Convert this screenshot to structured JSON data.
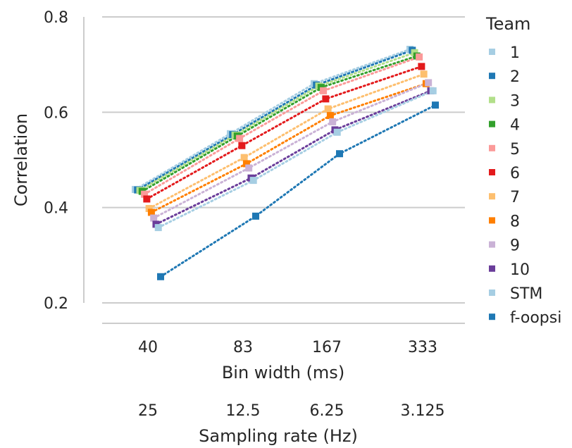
{
  "chart_data": {
    "type": "line",
    "ylabel": "Correlation",
    "xlabel": "Bin width (ms)",
    "x2label": "Sampling rate (Hz)",
    "categories": [
      "40",
      "83",
      "167",
      "333"
    ],
    "categories2": [
      "25",
      "12.5",
      "6.25",
      "3.125"
    ],
    "ylim": [
      0.2,
      0.8
    ],
    "yticks": [
      "0.2",
      "0.4",
      "0.6",
      "0.8"
    ],
    "grid": "horizontal",
    "line_style": "dotted",
    "legend_title": "Team",
    "legend_position": "right",
    "series": [
      {
        "name": "1",
        "color": "#a6cee3",
        "values": [
          0.438,
          0.555,
          0.66,
          0.732
        ]
      },
      {
        "name": "2",
        "color": "#1f78b4",
        "values": [
          0.437,
          0.553,
          0.657,
          0.73
        ]
      },
      {
        "name": "3",
        "color": "#b2df8a",
        "values": [
          0.436,
          0.552,
          0.655,
          0.725
        ]
      },
      {
        "name": "4",
        "color": "#33a02c",
        "values": [
          0.434,
          0.55,
          0.652,
          0.718
        ]
      },
      {
        "name": "5",
        "color": "#fb9a99",
        "values": [
          0.428,
          0.545,
          0.645,
          0.716
        ]
      },
      {
        "name": "6",
        "color": "#e31a1c",
        "values": [
          0.418,
          0.53,
          0.628,
          0.696
        ]
      },
      {
        "name": "7",
        "color": "#fdbf6f",
        "values": [
          0.398,
          0.505,
          0.607,
          0.68
        ]
      },
      {
        "name": "8",
        "color": "#ff7f00",
        "values": [
          0.39,
          0.492,
          0.593,
          0.66
        ]
      },
      {
        "name": "9",
        "color": "#cab2d6",
        "values": [
          0.378,
          0.483,
          0.58,
          0.662
        ]
      },
      {
        "name": "10",
        "color": "#6a3d9a",
        "values": [
          0.365,
          0.462,
          0.563,
          0.645
        ]
      },
      {
        "name": "STM",
        "color": "#a6cee3",
        "values": [
          0.358,
          0.457,
          0.558,
          0.645
        ]
      },
      {
        "name": "f-oopsi",
        "color": "#1f78b4",
        "values": [
          0.255,
          0.382,
          0.513,
          0.615
        ]
      }
    ]
  }
}
